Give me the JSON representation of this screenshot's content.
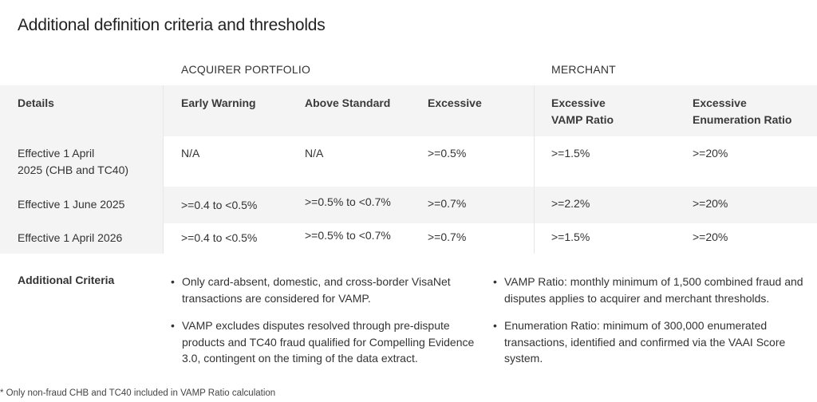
{
  "title": "Additional definition criteria and thresholds",
  "groups": {
    "acquirer": "ACQUIRER PORTFOLIO",
    "merchant": "MERCHANT"
  },
  "headers": {
    "details": "Details",
    "early_warning": "Early Warning",
    "above_standard": "Above Standard",
    "excessive": "Excessive",
    "vamp_ratio_1": "Excessive",
    "vamp_ratio_2": "VAMP Ratio",
    "enum_ratio_1": "Excessive",
    "enum_ratio_2": "Enumeration Ratio"
  },
  "rows": [
    {
      "details_1": "Effective 1 April",
      "details_2": "2025 (CHB and TC40)",
      "early_warning": "N/A",
      "above_standard": "N/A",
      "excessive": ">=0.5%",
      "vamp_ratio": ">=1.5%",
      "enum_ratio": ">=20%"
    },
    {
      "details_1": "Effective 1 June 2025",
      "early_warning": ">=0.4 to <0.5%",
      "above_standard": ">=0.5% to <0.7%",
      "excessive": ">=0.7%",
      "vamp_ratio": ">=2.2%",
      "enum_ratio": ">=20%"
    },
    {
      "details_1": "Effective 1 April 2026",
      "early_warning": ">=0.4 to <0.5%",
      "above_standard": ">=0.5% to <0.7%",
      "excessive": ">=0.7%",
      "vamp_ratio": ">=1.5%",
      "enum_ratio": ">=20%"
    }
  ],
  "criteria": {
    "label": "Additional Criteria",
    "left": [
      "Only card-absent, domestic, and cross-border VisaNet transactions are considered for VAMP.",
      "VAMP excludes disputes resolved through pre-dispute products and TC40 fraud qualified for Compelling Evidence 3.0, contingent on the timing of the data extract."
    ],
    "right": [
      "VAMP Ratio: monthly minimum of 1,500 combined fraud and disputes applies to acquirer and merchant thresholds.",
      "Enumeration Ratio: minimum of 300,000 enumerated transactions, identified and confirmed via the VAAI Score system."
    ]
  },
  "footnote": "* Only non-fraud CHB and TC40 included in VAMP Ratio calculation"
}
